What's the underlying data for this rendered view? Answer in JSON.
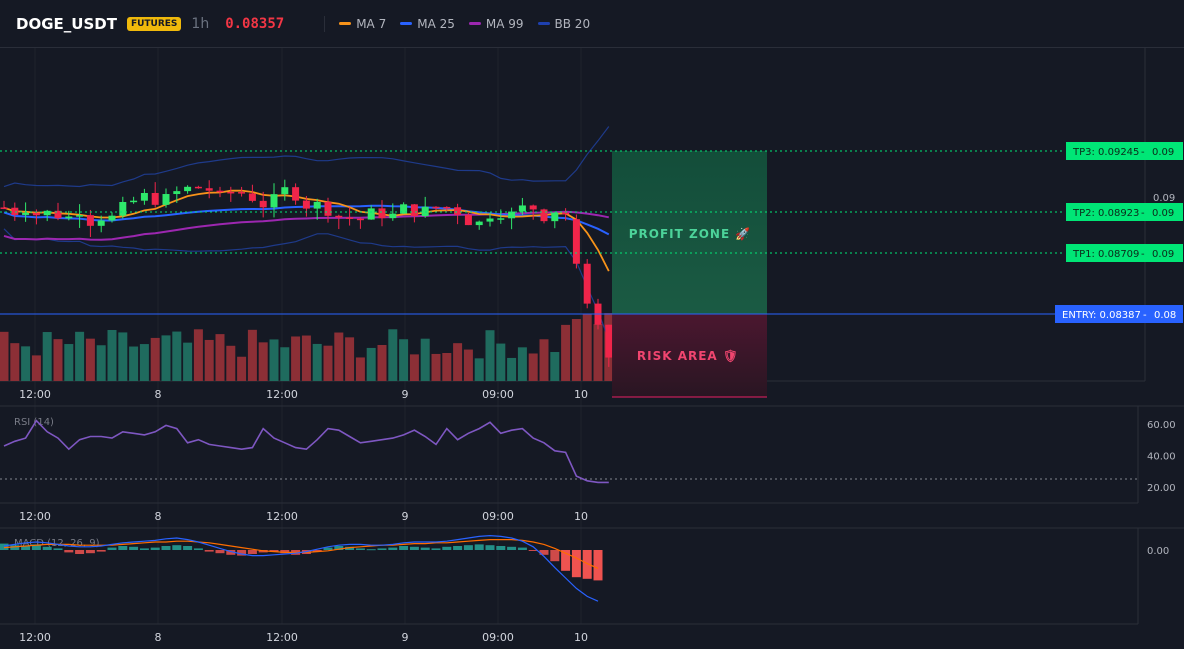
{
  "header": {
    "symbol": "DOGE_USDT",
    "badge": "FUTURES",
    "interval": "1h",
    "price": "0.08357"
  },
  "legend": [
    {
      "label": "MA 7",
      "color": "#f7931a",
      "icon": "line-swatch"
    },
    {
      "label": "MA 25",
      "color": "#2962ff",
      "icon": "line-swatch"
    },
    {
      "label": "MA 99",
      "color": "#9c27b0",
      "icon": "line-swatch"
    },
    {
      "label": "BB 20",
      "color": "#1e3a8a",
      "icon": "line-swatch"
    }
  ],
  "colors": {
    "up": "#26a69a",
    "up_bright": "#2ee86b",
    "down": "#ef5350",
    "down_bright": "#f0254a",
    "volume_up": "#1f6b5e",
    "volume_down": "#8c2f36",
    "profit_zone": "#1a5a43",
    "risk_zone": "#5c1c33",
    "target": "#00e676",
    "entry": "#2962ff",
    "rsi": "#7e57c2",
    "macd": "#2962ff",
    "signal": "#ff6d00"
  },
  "chart_data": {
    "type": "candlestick",
    "x_axis": {
      "tick_labels": [
        "12:00",
        "8",
        "12:00",
        "9",
        "09:00",
        "10"
      ]
    },
    "price_axis": {
      "tick_labels": [
        "0.09"
      ]
    },
    "last_candles": [
      {
        "open": 0.0895,
        "high": 0.0897,
        "low": 0.0874,
        "close": 0.0876
      },
      {
        "open": 0.0876,
        "high": 0.0878,
        "low": 0.0857,
        "close": 0.0859
      },
      {
        "open": 0.0859,
        "high": 0.0861,
        "low": 0.0848,
        "close": 0.085
      },
      {
        "open": 0.085,
        "high": 0.085,
        "low": 0.0832,
        "close": 0.0836
      }
    ],
    "trade_setup": {
      "tp3": {
        "label": "TP3: 0.09245",
        "price": 0.09245,
        "axis_label": "0.09"
      },
      "tp2": {
        "label": "TP2: 0.08923",
        "price": 0.08923,
        "axis_label": "0.09"
      },
      "tp1": {
        "label": "TP1: 0.08709",
        "price": 0.08709,
        "axis_label": "0.09"
      },
      "entry": {
        "label": "ENTRY: 0.08387",
        "price": 0.08387,
        "axis_label": "0.08"
      },
      "profit_label": "PROFIT ZONE 🚀",
      "risk_label": "RISK AREA 🛡"
    },
    "rsi": {
      "title": "RSI (14)",
      "ylim": [
        10,
        70
      ],
      "tick_labels": [
        "60.00",
        "40.00",
        "20.00"
      ],
      "tick_values": [
        60,
        40,
        20
      ],
      "reference_line": 30,
      "values": [
        46,
        49,
        51,
        62,
        55,
        51,
        44,
        50,
        52,
        52,
        51,
        55,
        54,
        53,
        55,
        59,
        57,
        48,
        50,
        47,
        46,
        45,
        44,
        45,
        57,
        51,
        48,
        45,
        44,
        50,
        57,
        56,
        52,
        48,
        49,
        50,
        51,
        53,
        56,
        52,
        47,
        57,
        50,
        54,
        57,
        61,
        54,
        56,
        57,
        51,
        48,
        43,
        42,
        27,
        24,
        23,
        23
      ]
    },
    "macd": {
      "title": "MACD (12, 26, 9)",
      "tick_labels": [
        "0.00"
      ],
      "histogram": [
        0.8,
        0.6,
        0.5,
        0.7,
        0.4,
        0.2,
        -0.3,
        -0.5,
        -0.4,
        -0.2,
        0.3,
        0.5,
        0.4,
        0.2,
        0.3,
        0.5,
        0.6,
        0.5,
        0.2,
        -0.2,
        -0.4,
        -0.6,
        -0.7,
        -0.5,
        -0.3,
        -0.2,
        -0.4,
        -0.6,
        -0.5,
        -0.2,
        0.3,
        0.5,
        0.4,
        0.2,
        0.1,
        0.2,
        0.3,
        0.5,
        0.4,
        0.3,
        0.2,
        0.4,
        0.5,
        0.6,
        0.7,
        0.6,
        0.5,
        0.4,
        0.3,
        -0.1,
        -0.6,
        -1.4,
        -2.6,
        -3.4,
        -3.6,
        -3.8
      ],
      "macd_line": [
        0.5,
        0.7,
        0.9,
        1.0,
        0.9,
        0.7,
        0.5,
        0.4,
        0.4,
        0.5,
        0.7,
        0.9,
        1.0,
        1.1,
        1.2,
        1.4,
        1.5,
        1.3,
        1.0,
        0.6,
        0.2,
        -0.2,
        -0.5,
        -0.7,
        -0.7,
        -0.6,
        -0.5,
        -0.4,
        -0.2,
        0.1,
        0.4,
        0.6,
        0.7,
        0.7,
        0.6,
        0.6,
        0.7,
        0.9,
        1.0,
        1.0,
        1.0,
        1.1,
        1.3,
        1.5,
        1.7,
        1.8,
        1.7,
        1.5,
        1.1,
        0.4,
        -0.8,
        -2.2,
        -3.5,
        -4.8,
        -5.8,
        -6.4
      ],
      "signal_line": [
        0.3,
        0.4,
        0.5,
        0.6,
        0.7,
        0.7,
        0.7,
        0.6,
        0.6,
        0.6,
        0.6,
        0.7,
        0.8,
        0.9,
        1.0,
        1.0,
        1.1,
        1.1,
        1.0,
        0.9,
        0.7,
        0.5,
        0.3,
        0.1,
        -0.1,
        -0.2,
        -0.3,
        -0.3,
        -0.3,
        -0.2,
        -0.1,
        0.1,
        0.3,
        0.4,
        0.5,
        0.6,
        0.6,
        0.7,
        0.8,
        0.8,
        0.9,
        0.9,
        1.0,
        1.1,
        1.2,
        1.3,
        1.3,
        1.3,
        1.2,
        1.0,
        0.7,
        0.2,
        -0.4,
        -1.0,
        -1.7,
        -2.3
      ]
    }
  }
}
